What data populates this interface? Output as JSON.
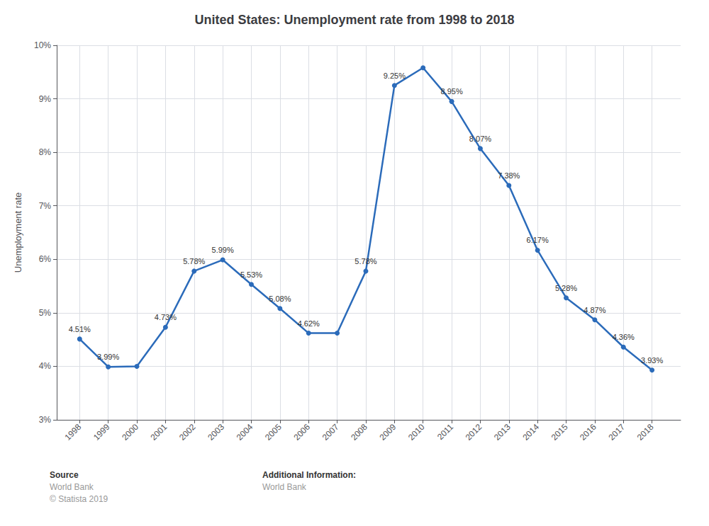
{
  "chart_data": {
    "type": "line",
    "title": "United States: Unemployment rate from 1998 to 2018",
    "ylabel": "Unemployment rate",
    "x": [
      1998,
      1999,
      2000,
      2001,
      2002,
      2003,
      2004,
      2005,
      2006,
      2007,
      2008,
      2009,
      2010,
      2011,
      2012,
      2013,
      2014,
      2015,
      2016,
      2017,
      2018
    ],
    "values": [
      4.51,
      3.99,
      4.0,
      4.73,
      5.78,
      5.99,
      5.53,
      5.08,
      4.62,
      4.62,
      5.78,
      9.25,
      9.58,
      8.95,
      8.07,
      7.38,
      6.17,
      5.28,
      4.87,
      4.36,
      3.93
    ],
    "value_labels": [
      "4.51%",
      "3.99%",
      null,
      "4.73%",
      "5.78%",
      "5.99%",
      "5.53%",
      "5.08%",
      "4.62%",
      null,
      "5.78%",
      "9.25%",
      null,
      "8.95%",
      "8.07%",
      "7.38%",
      "6.17%",
      "5.28%",
      "4.87%",
      "4.36%",
      "3.93%"
    ],
    "color": "#2b6bba",
    "marker": "circle",
    "xlim": [
      1997.2,
      2019.0
    ],
    "xticks": [
      1998,
      1999,
      2000,
      2001,
      2002,
      2003,
      2004,
      2005,
      2006,
      2007,
      2008,
      2009,
      2010,
      2011,
      2012,
      2013,
      2014,
      2015,
      2016,
      2017,
      2018
    ],
    "ylim": [
      3.0,
      10.0
    ],
    "yticks": [
      {
        "value": 3,
        "label": "3%"
      },
      {
        "value": 4,
        "label": "4%"
      },
      {
        "value": 5,
        "label": "5%"
      },
      {
        "value": 6,
        "label": "6%"
      },
      {
        "value": 7,
        "label": "7%"
      },
      {
        "value": 8,
        "label": "8%"
      },
      {
        "value": 9,
        "label": "9%"
      },
      {
        "value": 10,
        "label": "10%"
      }
    ],
    "grid": true,
    "annotations": [
      [
        "Source",
        "World Bank",
        "© Statista 2019"
      ],
      [
        "Additional Information:",
        "World Bank"
      ]
    ]
  }
}
